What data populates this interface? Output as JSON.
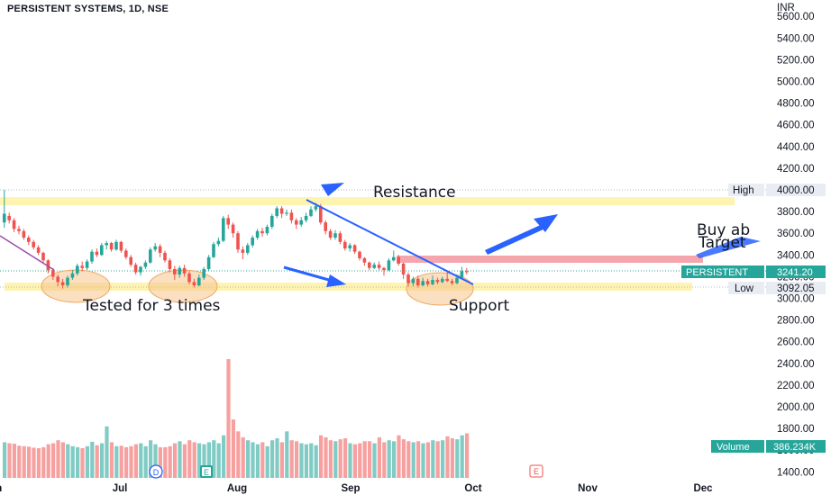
{
  "header": {
    "symbol_line": "PERSISTENT SYSTEMS, 1D, NSE"
  },
  "axis": {
    "currency": "INR",
    "price_ticks": [
      5600,
      5400,
      5200,
      5000,
      4800,
      4600,
      4400,
      4200,
      4000,
      3800,
      3600,
      3400,
      3200,
      3000,
      2800,
      2600,
      2400,
      2200,
      2000,
      1800,
      1600,
      1400
    ],
    "month_labels": [
      "Jun",
      "Jul",
      "Aug",
      "Sep",
      "Oct",
      "Nov",
      "Dec"
    ]
  },
  "badges": {
    "high": {
      "label": "High",
      "value": "4000.00"
    },
    "last": {
      "label": "PERSISTENT",
      "value": "3241.20"
    },
    "low": {
      "label": "Low",
      "value": "3092.05"
    },
    "volume": {
      "label": "Volume",
      "value": "386.234K"
    }
  },
  "annotations": {
    "resistance": "Resistance",
    "support": "Support",
    "tested": "Tested for 3 times",
    "buy": "Buy ab",
    "target": "Target"
  },
  "events": [
    "D",
    "E",
    "E"
  ],
  "colors": {
    "up": "#26a69a",
    "down": "#ef5350",
    "vol_up": "#80cbc4",
    "vol_down": "#f6a0a0",
    "zone": "#fff3b0",
    "circle": "#f5c48c",
    "arrow": "#2962ff",
    "trend": "#2962ff",
    "pink_zone": "#f4a6ac"
  },
  "chart_data": {
    "type": "candlestick",
    "title": "PERSISTENT SYSTEMS, 1D, NSE",
    "currency": "INR",
    "ylim": [
      1300,
      5700
    ],
    "x": [
      "Jun",
      "Jul",
      "Aug",
      "Sep",
      "Oct",
      "Nov",
      "Dec"
    ],
    "levels": {
      "high": 4000.0,
      "last": 3241.2,
      "low": 3092.05,
      "resistance": 3880,
      "support": 3100
    },
    "last_volume": "386.234K",
    "candles": [
      [
        3700,
        3780,
        4000,
        3650,
        720
      ],
      [
        3760,
        3720,
        3790,
        3690,
        700
      ],
      [
        3720,
        3640,
        3740,
        3610,
        690
      ],
      [
        3640,
        3620,
        3670,
        3590,
        650
      ],
      [
        3620,
        3560,
        3640,
        3540,
        640
      ],
      [
        3560,
        3520,
        3580,
        3490,
        630
      ],
      [
        3520,
        3470,
        3540,
        3450,
        610
      ],
      [
        3470,
        3420,
        3490,
        3400,
        600
      ],
      [
        3420,
        3350,
        3430,
        3320,
        620
      ],
      [
        3350,
        3260,
        3360,
        3230,
        680
      ],
      [
        3260,
        3200,
        3280,
        3170,
        700
      ],
      [
        3200,
        3150,
        3220,
        3110,
        760
      ],
      [
        3150,
        3120,
        3180,
        3090,
        720
      ],
      [
        3120,
        3190,
        3210,
        3100,
        680
      ],
      [
        3190,
        3230,
        3260,
        3170,
        640
      ],
      [
        3230,
        3300,
        3320,
        3210,
        620
      ],
      [
        3300,
        3280,
        3340,
        3250,
        600
      ],
      [
        3280,
        3340,
        3360,
        3260,
        640
      ],
      [
        3340,
        3430,
        3450,
        3320,
        730
      ],
      [
        3430,
        3400,
        3460,
        3380,
        660
      ],
      [
        3400,
        3490,
        3510,
        3390,
        700
      ],
      [
        3490,
        3510,
        3530,
        3450,
        1040
      ],
      [
        3510,
        3450,
        3520,
        3430,
        720
      ],
      [
        3450,
        3520,
        3540,
        3440,
        640
      ],
      [
        3520,
        3440,
        3530,
        3420,
        650
      ],
      [
        3440,
        3380,
        3460,
        3360,
        620
      ],
      [
        3380,
        3310,
        3400,
        3290,
        640
      ],
      [
        3310,
        3240,
        3330,
        3220,
        680
      ],
      [
        3240,
        3290,
        3300,
        3210,
        700
      ],
      [
        3290,
        3330,
        3350,
        3270,
        640
      ],
      [
        3330,
        3450,
        3470,
        3320,
        760
      ],
      [
        3450,
        3480,
        3510,
        3430,
        680
      ],
      [
        3480,
        3420,
        3500,
        3380,
        620
      ],
      [
        3420,
        3350,
        3440,
        3330,
        620
      ],
      [
        3350,
        3270,
        3370,
        3240,
        640
      ],
      [
        3270,
        3220,
        3300,
        3170,
        700
      ],
      [
        3220,
        3280,
        3300,
        3190,
        740
      ],
      [
        3280,
        3230,
        3310,
        3200,
        680
      ],
      [
        3230,
        3150,
        3250,
        3130,
        760
      ],
      [
        3150,
        3120,
        3180,
        3100,
        720
      ],
      [
        3120,
        3190,
        3220,
        3110,
        700
      ],
      [
        3190,
        3270,
        3290,
        3170,
        680
      ],
      [
        3270,
        3380,
        3400,
        3250,
        720
      ],
      [
        3380,
        3500,
        3520,
        3370,
        760
      ],
      [
        3500,
        3530,
        3560,
        3480,
        700
      ],
      [
        3530,
        3740,
        3760,
        3520,
        860
      ],
      [
        3740,
        3680,
        3770,
        3640,
        2400
      ],
      [
        3680,
        3600,
        3700,
        3560,
        1180
      ],
      [
        3600,
        3450,
        3620,
        3420,
        940
      ],
      [
        3450,
        3420,
        3480,
        3360,
        820
      ],
      [
        3420,
        3490,
        3510,
        3400,
        760
      ],
      [
        3490,
        3560,
        3580,
        3470,
        720
      ],
      [
        3560,
        3620,
        3640,
        3540,
        680
      ],
      [
        3620,
        3600,
        3650,
        3570,
        720
      ],
      [
        3600,
        3660,
        3680,
        3580,
        640
      ],
      [
        3660,
        3760,
        3780,
        3640,
        760
      ],
      [
        3760,
        3830,
        3850,
        3740,
        800
      ],
      [
        3830,
        3780,
        3850,
        3740,
        720
      ],
      [
        3780,
        3790,
        3820,
        3760,
        940
      ],
      [
        3790,
        3720,
        3820,
        3690,
        760
      ],
      [
        3720,
        3680,
        3740,
        3640,
        740
      ],
      [
        3680,
        3720,
        3750,
        3660,
        700
      ],
      [
        3720,
        3760,
        3790,
        3700,
        680
      ],
      [
        3760,
        3820,
        3850,
        3750,
        700
      ],
      [
        3820,
        3850,
        3880,
        3800,
        660
      ],
      [
        3850,
        3700,
        3870,
        3680,
        860
      ],
      [
        3700,
        3620,
        3720,
        3590,
        820
      ],
      [
        3620,
        3560,
        3640,
        3540,
        760
      ],
      [
        3560,
        3600,
        3630,
        3540,
        740
      ],
      [
        3600,
        3520,
        3620,
        3500,
        780
      ],
      [
        3520,
        3460,
        3540,
        3440,
        800
      ],
      [
        3460,
        3490,
        3510,
        3430,
        700
      ],
      [
        3490,
        3430,
        3500,
        3410,
        680
      ],
      [
        3430,
        3370,
        3440,
        3350,
        700
      ],
      [
        3370,
        3330,
        3380,
        3300,
        740
      ],
      [
        3330,
        3280,
        3340,
        3260,
        740
      ],
      [
        3280,
        3310,
        3330,
        3270,
        700
      ],
      [
        3310,
        3280,
        3340,
        3260,
        820
      ],
      [
        3280,
        3260,
        3290,
        3210,
        720
      ],
      [
        3260,
        3350,
        3370,
        3250,
        760
      ],
      [
        3350,
        3380,
        3440,
        3340,
        740
      ],
      [
        3380,
        3320,
        3400,
        3300,
        860
      ],
      [
        3320,
        3220,
        3330,
        3180,
        780
      ],
      [
        3220,
        3140,
        3240,
        3110,
        740
      ],
      [
        3140,
        3180,
        3200,
        3110,
        720
      ],
      [
        3180,
        3120,
        3210,
        3100,
        740
      ],
      [
        3120,
        3160,
        3190,
        3110,
        700
      ],
      [
        3160,
        3130,
        3180,
        3110,
        720
      ],
      [
        3130,
        3170,
        3210,
        3120,
        760
      ],
      [
        3170,
        3150,
        3190,
        3130,
        740
      ],
      [
        3150,
        3180,
        3200,
        3140,
        760
      ],
      [
        3180,
        3160,
        3250,
        3150,
        840
      ],
      [
        3160,
        3140,
        3180,
        3120,
        800
      ],
      [
        3140,
        3190,
        3220,
        3130,
        780
      ],
      [
        3190,
        3250,
        3290,
        3180,
        860
      ],
      [
        3250,
        3241.2,
        3280,
        3220,
        900
      ]
    ]
  }
}
